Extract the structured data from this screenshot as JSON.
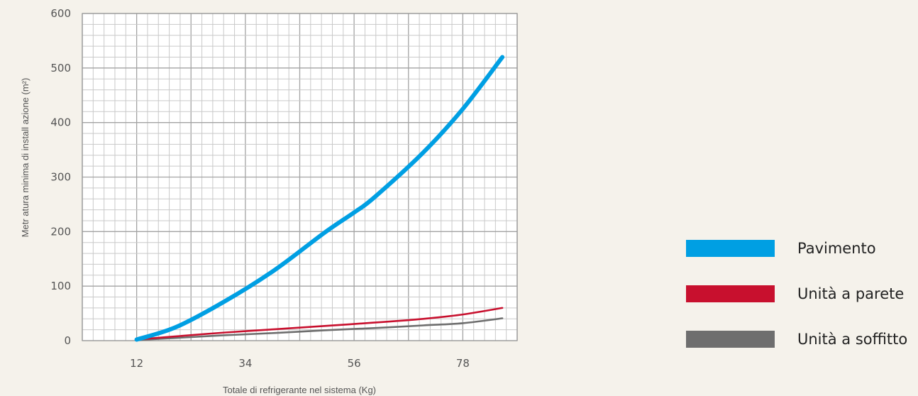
{
  "chart_data": {
    "type": "line",
    "xlabel": "Totale di refrigerante nel sistema (Kg)",
    "ylabel": "Metratura minima di installazione (m²)",
    "ylabel_text": "Metr atura minima di install azione (m²)",
    "xlim": [
      1,
      89
    ],
    "ylim": [
      0,
      600
    ],
    "x_ticks": [
      12,
      34,
      56,
      78
    ],
    "y_ticks": [
      0,
      100,
      200,
      300,
      400,
      500,
      600
    ],
    "grid": true,
    "legend_position": "right",
    "series": [
      {
        "name": "Pavimento",
        "color": "#009fe3",
        "x": [
          12,
          20,
          30,
          40,
          50,
          56,
          60,
          70,
          78,
          86
        ],
        "y": [
          2,
          25,
          73,
          130,
          198,
          235,
          262,
          345,
          425,
          520
        ]
      },
      {
        "name": "Unità a parete",
        "color": "#c8102e",
        "x": [
          12,
          20,
          30,
          40,
          50,
          60,
          70,
          78,
          86
        ],
        "y": [
          2,
          8,
          15,
          21,
          27,
          33,
          40,
          48,
          60
        ]
      },
      {
        "name": "Unità a soffitto",
        "color": "#6e6e6e",
        "x": [
          12,
          20,
          30,
          40,
          50,
          60,
          70,
          78,
          86
        ],
        "y": [
          1,
          5,
          10,
          14,
          19,
          23,
          28,
          32,
          41
        ]
      }
    ]
  }
}
